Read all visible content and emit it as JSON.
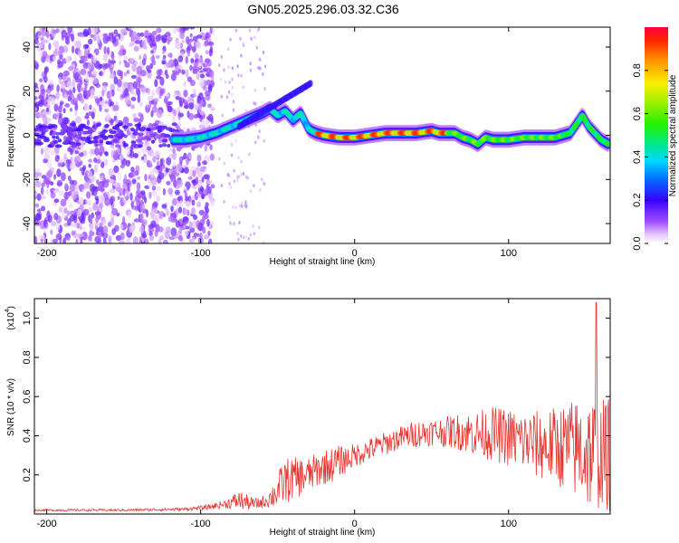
{
  "title": "GN05.2025.296.03.32.C36",
  "chart_data": [
    {
      "type": "heatmap",
      "title": "GN05.2025.296.03.32.C36",
      "xlabel": "Height of straight line (km)",
      "ylabel": "Frequency (Hz)",
      "xlim": [
        -208,
        166
      ],
      "ylim": [
        -49,
        49
      ],
      "x_ticks": [
        -200,
        -100,
        0,
        100
      ],
      "x_tick_labels": [
        "-200",
        "-100",
        "0",
        "100"
      ],
      "y_ticks": [
        40,
        20,
        0,
        -20,
        -40
      ],
      "y_tick_labels": [
        "40",
        "20",
        "0",
        "-20",
        "-40"
      ],
      "ridge": {
        "x": [
          -118,
          -110,
          -100,
          -90,
          -80,
          -70,
          -60,
          -55,
          -50,
          -45,
          -40,
          -35,
          -30,
          -28,
          -25,
          -20,
          -10,
          0,
          10,
          20,
          30,
          40,
          50,
          55,
          60,
          65,
          70,
          75,
          80,
          85,
          90,
          95,
          100,
          110,
          120,
          130,
          140,
          145,
          148,
          152,
          156,
          160,
          165
        ],
        "y": [
          -2,
          -2,
          -1,
          1,
          4,
          7,
          10,
          12,
          9,
          11,
          7,
          10,
          3,
          2,
          1,
          0,
          -1,
          -1,
          0,
          1,
          1,
          1,
          2,
          1,
          1,
          1,
          -1,
          -2,
          -4,
          -1,
          -2,
          -2,
          -2,
          -1,
          -1,
          -1,
          1,
          6,
          9,
          4,
          1,
          -2,
          -4
        ]
      },
      "colorbar": {
        "label": "Normalized spectral amplitude",
        "range": [
          0,
          1
        ],
        "ticks": [
          0.0,
          0.2,
          0.4,
          0.6,
          0.8
        ],
        "tick_labels": [
          "0.0",
          "0.2",
          "0.4",
          "0.6",
          "0.8"
        ]
      },
      "grid": false,
      "legend": "none"
    },
    {
      "type": "line",
      "title": "",
      "xlabel": "Height of straight line (km)",
      "ylabel": "SNR (10 * v/v)",
      "scale_note": "(x10",
      "scale_exp": "4",
      "units": "x10^4",
      "xlim": [
        -208,
        166
      ],
      "ylim": [
        0,
        1.1
      ],
      "x_ticks": [
        -200,
        -100,
        0,
        100
      ],
      "x_tick_labels": [
        "-200",
        "-100",
        "0",
        "100"
      ],
      "y_ticks": [
        0.2,
        0.4,
        0.6,
        0.8,
        1.0
      ],
      "y_tick_labels": [
        "0.2",
        "0.4",
        "0.6",
        "0.8",
        "1.0"
      ],
      "series": [
        {
          "color": "#e8332e",
          "envelope_x": [
            -208,
            -150,
            -110,
            -95,
            -85,
            -75,
            -70,
            -65,
            -60,
            -55,
            -50,
            -45,
            -40,
            -35,
            -30,
            -25,
            -20,
            -15,
            -10,
            -5,
            0,
            10,
            20,
            30,
            40,
            50,
            60,
            70,
            80,
            90,
            100,
            110,
            120,
            130,
            140,
            150,
            155,
            160,
            166
          ],
          "envelope_center": [
            0.02,
            0.02,
            0.025,
            0.035,
            0.05,
            0.07,
            0.06,
            0.05,
            0.06,
            0.08,
            0.12,
            0.17,
            0.18,
            0.19,
            0.2,
            0.22,
            0.24,
            0.25,
            0.27,
            0.28,
            0.3,
            0.33,
            0.36,
            0.39,
            0.41,
            0.42,
            0.42,
            0.42,
            0.41,
            0.41,
            0.39,
            0.37,
            0.35,
            0.35,
            0.34,
            0.32,
            0.31,
            0.31,
            0.3
          ],
          "envelope_spread": [
            0.005,
            0.006,
            0.008,
            0.012,
            0.02,
            0.05,
            0.04,
            0.03,
            0.03,
            0.05,
            0.09,
            0.12,
            0.11,
            0.1,
            0.09,
            0.09,
            0.09,
            0.09,
            0.08,
            0.07,
            0.06,
            0.06,
            0.06,
            0.06,
            0.07,
            0.07,
            0.08,
            0.1,
            0.12,
            0.14,
            0.15,
            0.16,
            0.18,
            0.2,
            0.24,
            0.3,
            0.3,
            0.28,
            0.3
          ],
          "peak": [
            157,
            1.08
          ]
        }
      ],
      "grid": false,
      "legend": "none"
    }
  ]
}
